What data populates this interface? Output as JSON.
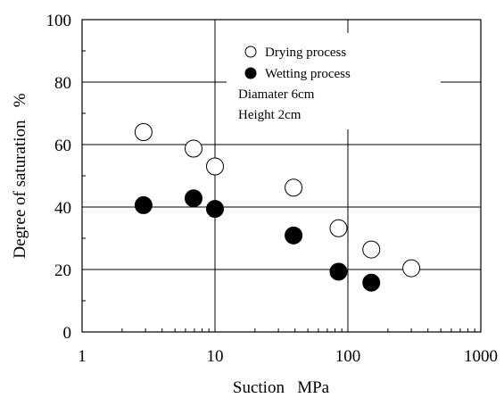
{
  "chart_data": {
    "type": "scatter",
    "x_scale": "log",
    "xlim": [
      1,
      1000
    ],
    "ylim": [
      0,
      100
    ],
    "xticks": [
      1,
      10,
      100,
      1000
    ],
    "yticks": [
      0,
      20,
      40,
      60,
      80,
      100
    ],
    "xtick_labels": [
      "1",
      "10",
      "100",
      "1000"
    ],
    "ytick_labels": [
      "0",
      "20",
      "40",
      "60",
      "80",
      "100"
    ],
    "xlabel": "Suction   MPa",
    "ylabel": "Degree of saturation   %",
    "grid": true,
    "legend_position": "top-center",
    "series": [
      {
        "name": "Drying process",
        "marker": "open-circle",
        "color": "#000000",
        "x": [
          2.9,
          6.9,
          10,
          39,
          85,
          150,
          300
        ],
        "y": [
          64,
          58.7,
          53,
          46.2,
          33.2,
          26.4,
          20.4
        ]
      },
      {
        "name": "Wetting process",
        "marker": "filled-circle",
        "color": "#000000",
        "x": [
          2.9,
          6.9,
          10,
          39,
          85,
          150
        ],
        "y": [
          40.6,
          42.8,
          39.4,
          30.9,
          19.3,
          15.8
        ]
      }
    ],
    "annotations": [
      "Diamater 6cm",
      "Height 2cm"
    ]
  }
}
